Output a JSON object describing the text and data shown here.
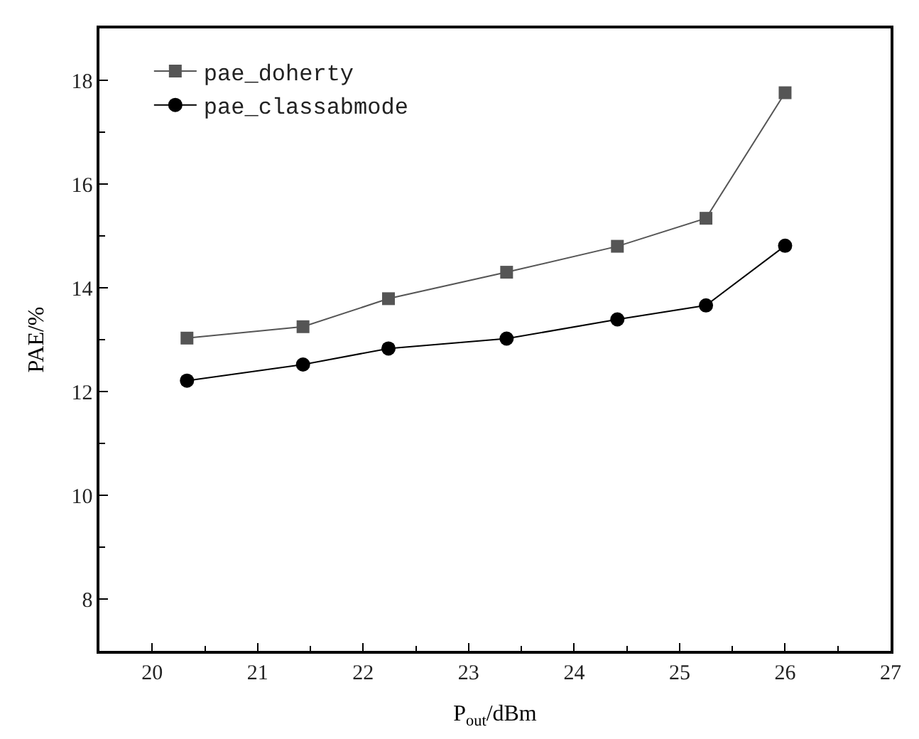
{
  "chart_data": {
    "type": "line",
    "xlabel": "P$_{out}$/dBm",
    "ylabel": "PAE/%",
    "x": [
      20.33,
      21.43,
      22.24,
      23.36,
      24.41,
      25.25,
      26.0
    ],
    "series": [
      {
        "name": "pae_doherty",
        "color": "#555555",
        "marker": "square",
        "values": [
          13.03,
          13.25,
          13.79,
          14.3,
          14.8,
          15.34,
          17.76
        ]
      },
      {
        "name": "pae_classabmode",
        "color": "#000000",
        "marker": "circle",
        "values": [
          12.21,
          12.52,
          12.83,
          13.02,
          13.39,
          13.66,
          14.81
        ]
      }
    ],
    "xlim": [
      19.5,
      27
    ],
    "xticks": [
      20,
      21,
      22,
      23,
      24,
      25,
      26,
      27
    ],
    "ylim": [
      7,
      19
    ],
    "yticks": [
      8,
      10,
      12,
      14,
      16,
      18
    ],
    "legend": "top left",
    "line_style": "solid"
  }
}
